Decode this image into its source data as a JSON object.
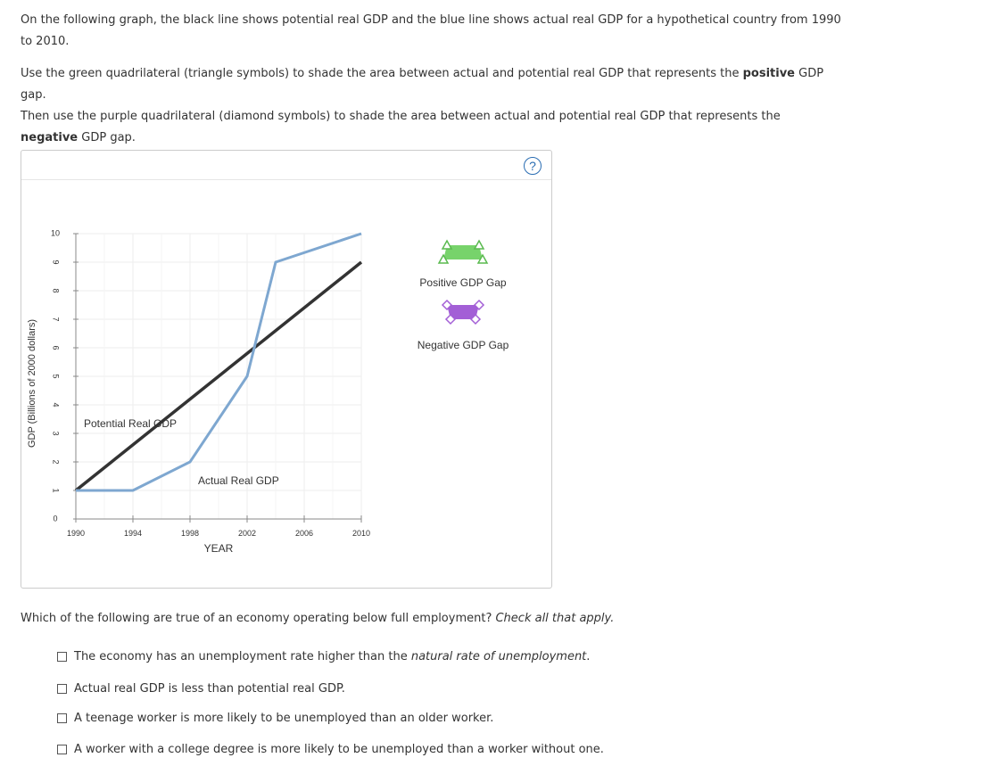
{
  "instructions": {
    "p1": "On the following graph, the black line shows potential real GDP and the blue line shows actual real GDP for a hypothetical country from 1990 to 2010.",
    "p2_a": "Use the green quadrilateral (triangle symbols) to shade the area between actual and potential real GDP that represents the ",
    "p2_bold": "positive",
    "p2_b": " GDP gap.",
    "p3_a": "Then use the purple quadrilateral (diamond symbols) to shade the area between actual and potential real GDP that represents the",
    "p3_bold": "negative",
    "p3_b": " GDP gap."
  },
  "graph": {
    "help_label": "?",
    "palette": [
      {
        "label": "Positive GDP Gap",
        "color": "#77d36b",
        "symbol": "triangle",
        "symbol_color": "#5aba4f"
      },
      {
        "label": "Negative GDP Gap",
        "color": "#a35fd6",
        "symbol": "diamond",
        "symbol_color": "#a35fd6"
      }
    ]
  },
  "chart_data": {
    "type": "line",
    "xlabel": "YEAR",
    "ylabel": "GDP (Billions of 2000 dollars)",
    "xlim": [
      1990,
      2010
    ],
    "ylim": [
      0,
      10
    ],
    "x_ticks": [
      1990,
      1994,
      1998,
      2002,
      2006,
      2010
    ],
    "y_ticks": [
      0,
      1,
      2,
      3,
      4,
      5,
      6,
      7,
      8,
      9,
      10
    ],
    "grid": true,
    "series": [
      {
        "name": "Potential Real GDP",
        "color": "#333333",
        "points": [
          [
            1990,
            1
          ],
          [
            2010,
            9
          ]
        ]
      },
      {
        "name": "Actual Real GDP",
        "color": "#7ea7d0",
        "points": [
          [
            1990,
            1
          ],
          [
            1994,
            1
          ],
          [
            1998,
            2
          ],
          [
            2002,
            5
          ],
          [
            2004,
            9
          ],
          [
            2010,
            10
          ]
        ]
      }
    ]
  },
  "question": {
    "text": "Which of the following are true of an economy operating below full employment? ",
    "hint": "Check all that apply."
  },
  "options": [
    {
      "pre": "The economy has an unemployment rate higher than the ",
      "em": "natural rate of unemployment",
      "post": "."
    },
    {
      "pre": "Actual real GDP is less than potential real GDP.",
      "em": "",
      "post": ""
    },
    {
      "pre": "A teenage worker is more likely to be unemployed than an older worker.",
      "em": "",
      "post": ""
    },
    {
      "pre": "A worker with a college degree is more likely to be unemployed than a worker without one.",
      "em": "",
      "post": ""
    }
  ]
}
